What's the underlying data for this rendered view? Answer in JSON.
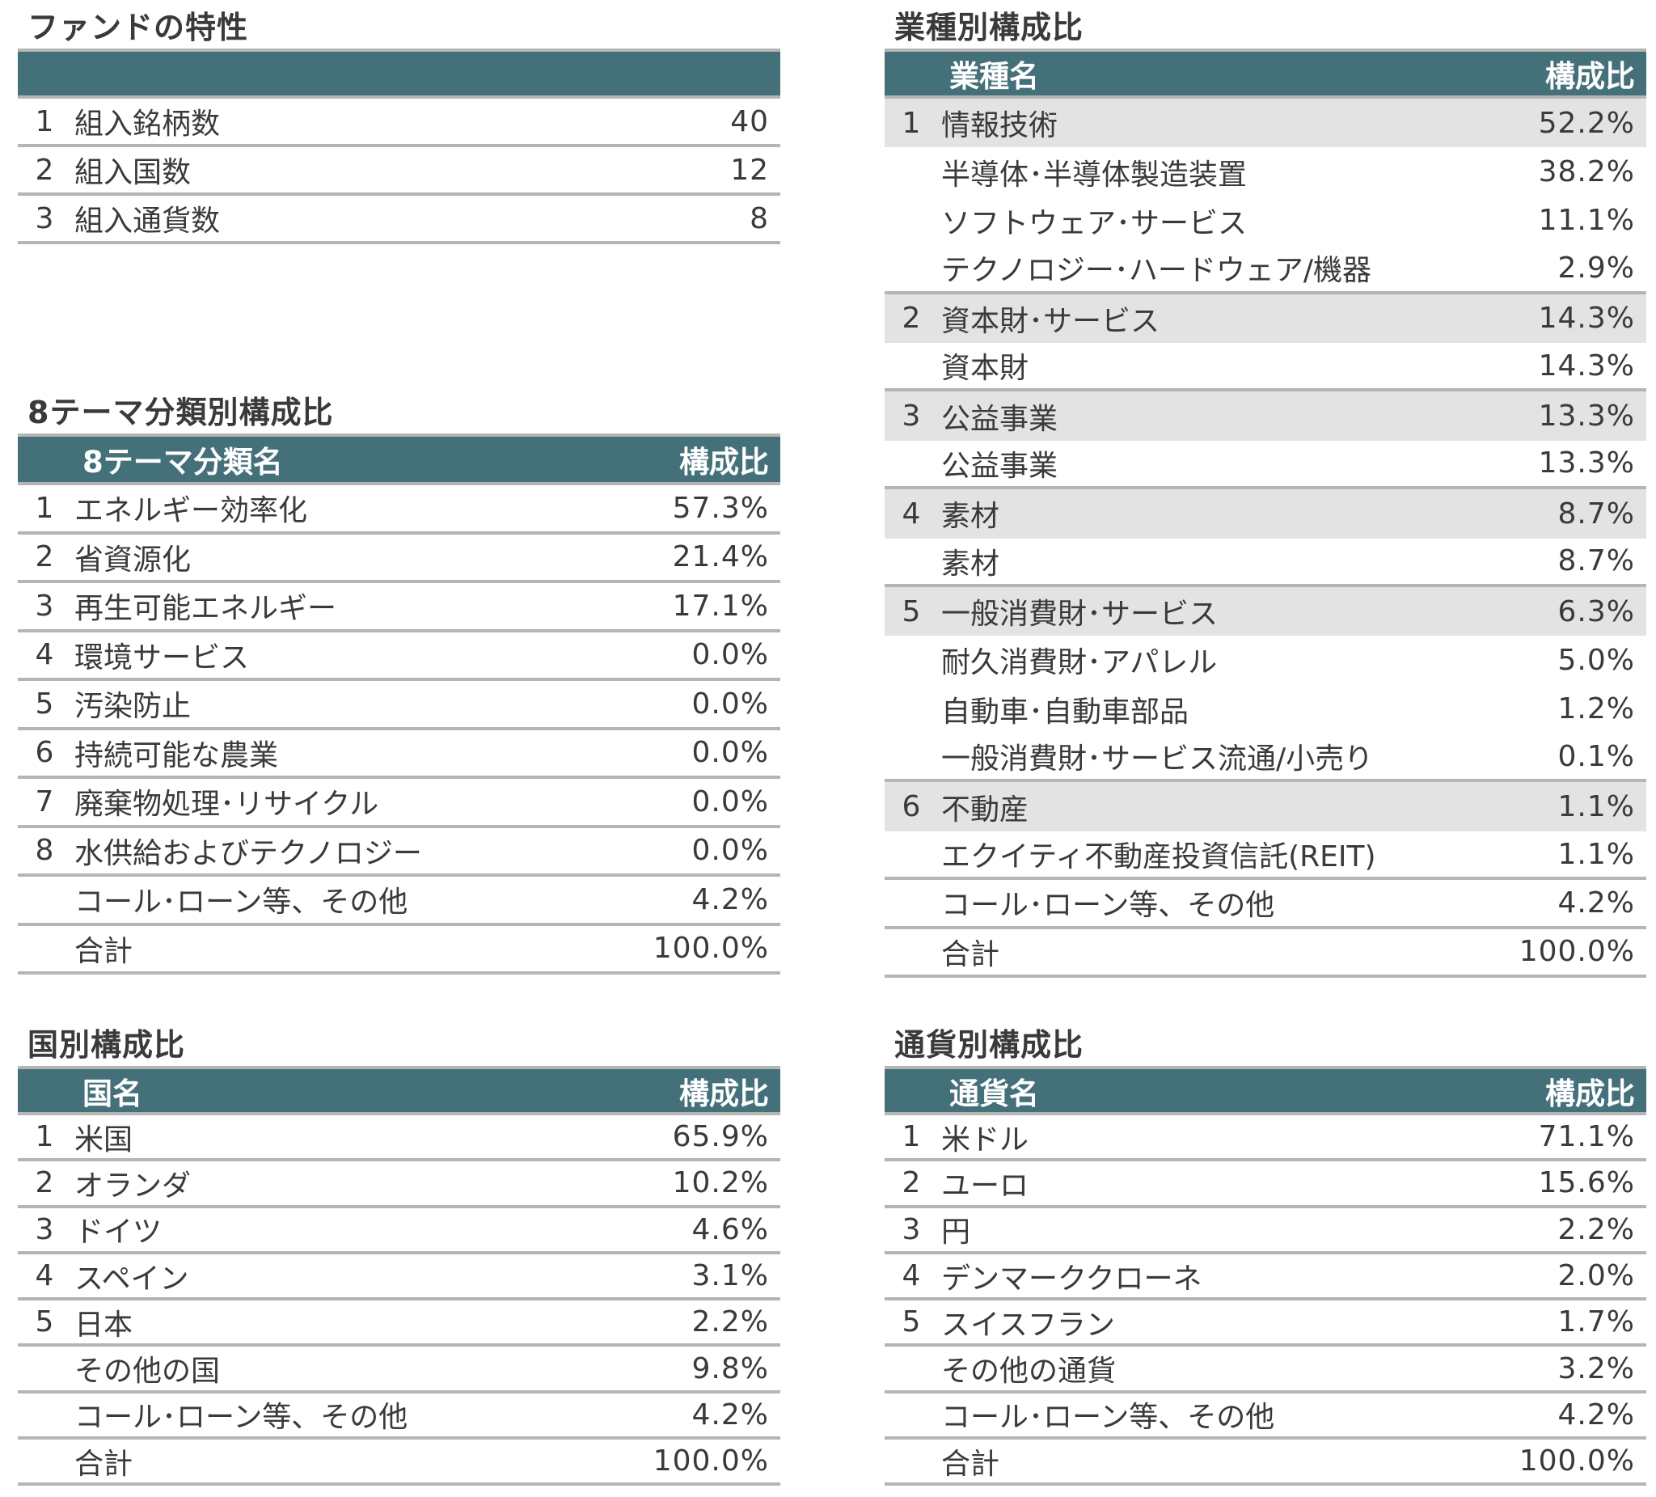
{
  "header_color": "#44707a",
  "fund_characteristics": {
    "title": "ファンドの特性",
    "rows": [
      {
        "num": "1",
        "label": "組入銘柄数",
        "value": "40"
      },
      {
        "num": "2",
        "label": "組入国数",
        "value": "12"
      },
      {
        "num": "3",
        "label": "組入通貨数",
        "value": "8"
      }
    ]
  },
  "theme": {
    "title": "8テーマ分類別構成比",
    "col_name": "8テーマ分類名",
    "col_value": "構成比",
    "rows": [
      {
        "num": "1",
        "label": "エネルギー効率化",
        "value": "57.3%"
      },
      {
        "num": "2",
        "label": "省資源化",
        "value": "21.4%"
      },
      {
        "num": "3",
        "label": "再生可能エネルギー",
        "value": "17.1%"
      },
      {
        "num": "4",
        "label": "環境サービス",
        "value": "0.0%"
      },
      {
        "num": "5",
        "label": "汚染防止",
        "value": "0.0%"
      },
      {
        "num": "6",
        "label": "持続可能な農業",
        "value": "0.0%"
      },
      {
        "num": "7",
        "label": "廃棄物処理･リサイクル",
        "value": "0.0%"
      },
      {
        "num": "8",
        "label": "水供給およびテクノロジー",
        "value": "0.0%"
      },
      {
        "num": "",
        "label": "コール･ローン等、その他",
        "value": "4.2%"
      },
      {
        "num": "",
        "label": "合計",
        "value": "100.0%"
      }
    ]
  },
  "country": {
    "title": "国別構成比",
    "col_name": "国名",
    "col_value": "構成比",
    "rows": [
      {
        "num": "1",
        "label": "米国",
        "value": "65.9%"
      },
      {
        "num": "2",
        "label": "オランダ",
        "value": "10.2%"
      },
      {
        "num": "3",
        "label": "ドイツ",
        "value": "4.6%"
      },
      {
        "num": "4",
        "label": "スペイン",
        "value": "3.1%"
      },
      {
        "num": "5",
        "label": "日本",
        "value": "2.2%"
      },
      {
        "num": "",
        "label": "その他の国",
        "value": "9.8%"
      },
      {
        "num": "",
        "label": "コール･ローン等、その他",
        "value": "4.2%"
      },
      {
        "num": "",
        "label": "合計",
        "value": "100.0%"
      }
    ]
  },
  "industry": {
    "title": "業種別構成比",
    "col_name": "業種名",
    "col_value": "構成比",
    "rows": [
      {
        "num": "1",
        "label": "情報技術",
        "value": "52.2%",
        "level": "category"
      },
      {
        "num": "",
        "label": "半導体･半導体製造装置",
        "value": "38.2%",
        "level": "sub"
      },
      {
        "num": "",
        "label": "ソフトウェア･サービス",
        "value": "11.1%",
        "level": "sub"
      },
      {
        "num": "",
        "label": "テクノロジー･ハードウェア/機器",
        "value": "2.9%",
        "level": "sub"
      },
      {
        "num": "2",
        "label": "資本財･サービス",
        "value": "14.3%",
        "level": "category"
      },
      {
        "num": "",
        "label": "資本財",
        "value": "14.3%",
        "level": "sub"
      },
      {
        "num": "3",
        "label": "公益事業",
        "value": "13.3%",
        "level": "category"
      },
      {
        "num": "",
        "label": "公益事業",
        "value": "13.3%",
        "level": "sub"
      },
      {
        "num": "4",
        "label": "素材",
        "value": "8.7%",
        "level": "category"
      },
      {
        "num": "",
        "label": "素材",
        "value": "8.7%",
        "level": "sub"
      },
      {
        "num": "5",
        "label": "一般消費財･サービス",
        "value": "6.3%",
        "level": "category"
      },
      {
        "num": "",
        "label": "耐久消費財･アパレル",
        "value": "5.0%",
        "level": "sub"
      },
      {
        "num": "",
        "label": "自動車･自動車部品",
        "value": "1.2%",
        "level": "sub"
      },
      {
        "num": "",
        "label": "一般消費財･サービス流通/小売り",
        "value": "0.1%",
        "level": "sub"
      },
      {
        "num": "6",
        "label": "不動産",
        "value": "1.1%",
        "level": "category"
      },
      {
        "num": "",
        "label": "エクイティ不動産投資信託(REIT)",
        "value": "1.1%",
        "level": "sub"
      },
      {
        "num": "",
        "label": "コール･ローン等、その他",
        "value": "4.2%",
        "level": "summary"
      },
      {
        "num": "",
        "label": "合計",
        "value": "100.0%",
        "level": "summary"
      }
    ]
  },
  "currency": {
    "title": "通貨別構成比",
    "col_name": "通貨名",
    "col_value": "構成比",
    "rows": [
      {
        "num": "1",
        "label": "米ドル",
        "value": "71.1%"
      },
      {
        "num": "2",
        "label": "ユーロ",
        "value": "15.6%"
      },
      {
        "num": "3",
        "label": "円",
        "value": "2.2%"
      },
      {
        "num": "4",
        "label": "デンマーククローネ",
        "value": "2.0%"
      },
      {
        "num": "5",
        "label": "スイスフラン",
        "value": "1.7%"
      },
      {
        "num": "",
        "label": "その他の通貨",
        "value": "3.2%"
      },
      {
        "num": "",
        "label": "コール･ローン等、その他",
        "value": "4.2%"
      },
      {
        "num": "",
        "label": "合計",
        "value": "100.0%"
      }
    ]
  }
}
